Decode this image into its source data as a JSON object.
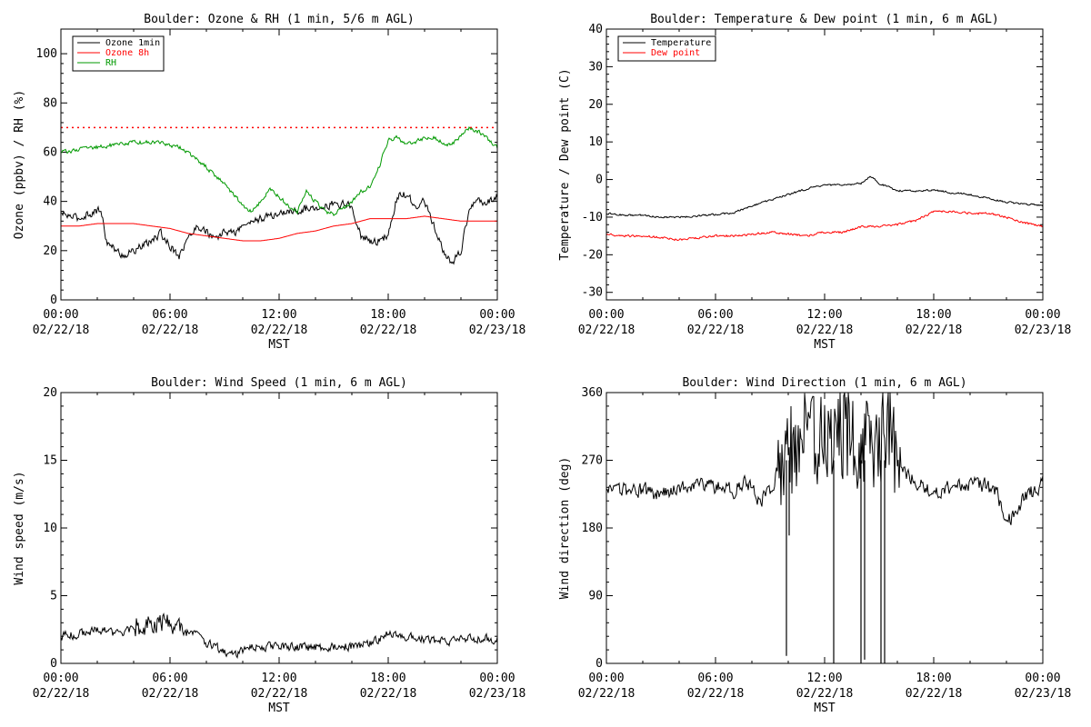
{
  "chart_data": [
    {
      "type": "line",
      "title": "Boulder: Ozone & RH (1 min, 5/6 m AGL)",
      "ylabel": "Ozone (ppbv) / RH (%)",
      "xlabel": "MST",
      "ylim": [
        0,
        110
      ],
      "yticks": [
        0,
        20,
        40,
        60,
        80,
        100
      ],
      "xticks": [
        {
          "hour": 0,
          "time": "00:00",
          "date": "02/22/18"
        },
        {
          "hour": 6,
          "time": "06:00",
          "date": "02/22/18"
        },
        {
          "hour": 12,
          "time": "12:00",
          "date": "02/22/18"
        },
        {
          "hour": 18,
          "time": "18:00",
          "date": "02/22/18"
        },
        {
          "hour": 24,
          "time": "00:00",
          "date": "02/23/18"
        }
      ],
      "legend_position": "top-left",
      "reference_line": {
        "value": 70,
        "color": "#ff0000",
        "style": "dotted"
      },
      "series": [
        {
          "name": "Ozone 1min",
          "color": "#000000",
          "noise": 2.2,
          "x": [
            0,
            1,
            1.5,
            2,
            2.2,
            2.5,
            3,
            3.5,
            4,
            4.5,
            5,
            5.5,
            6,
            6.5,
            7,
            7.5,
            8,
            8.5,
            9,
            9.5,
            10,
            10.5,
            11,
            11.5,
            12,
            12.5,
            13,
            13.5,
            14,
            14.5,
            15,
            15.5,
            16,
            16.5,
            17,
            17.5,
            18,
            18.5,
            19,
            19.5,
            20,
            20.5,
            21,
            21.5,
            22,
            22.5,
            23,
            23.5,
            24
          ],
          "y": [
            35,
            33,
            35,
            36,
            37,
            24,
            20,
            18,
            20,
            22,
            24,
            27,
            22,
            18,
            25,
            30,
            28,
            24,
            28,
            27,
            30,
            32,
            33,
            34,
            35,
            36,
            36,
            37,
            38,
            38,
            39,
            39,
            38,
            26,
            24,
            24,
            26,
            42,
            43,
            38,
            40,
            30,
            20,
            15,
            20,
            38,
            40,
            40,
            42
          ]
        },
        {
          "name": "Ozone 8h",
          "color": "#ff0000",
          "noise": 0,
          "x": [
            0,
            1,
            2,
            3,
            4,
            5,
            6,
            7,
            8,
            9,
            10,
            11,
            12,
            13,
            14,
            15,
            16,
            17,
            18,
            19,
            20,
            21,
            22,
            23,
            24
          ],
          "y": [
            30,
            30,
            31,
            31,
            31,
            30,
            29,
            27,
            26,
            25,
            24,
            24,
            25,
            27,
            28,
            30,
            31,
            33,
            33,
            33,
            34,
            33,
            32,
            32,
            32
          ]
        },
        {
          "name": "RH",
          "color": "#009900",
          "noise": 1.2,
          "x": [
            0,
            1,
            2,
            3,
            4,
            5,
            6,
            6.5,
            7,
            7.5,
            8,
            8.5,
            9,
            9.5,
            10,
            10.5,
            11,
            11.5,
            12,
            12.5,
            13,
            13.5,
            14,
            14.5,
            15,
            15.5,
            16,
            16.5,
            17,
            17.5,
            18,
            18.5,
            19,
            19.5,
            20,
            20.5,
            21,
            21.5,
            22,
            22.5,
            23,
            23.5,
            24
          ],
          "y": [
            60,
            61,
            62,
            63,
            64,
            64,
            63,
            62,
            60,
            57,
            54,
            50,
            47,
            43,
            38,
            36,
            40,
            45,
            42,
            38,
            36,
            44,
            40,
            36,
            35,
            37,
            40,
            44,
            46,
            54,
            65,
            66,
            63,
            64,
            66,
            66,
            64,
            63,
            67,
            70,
            68,
            65,
            62
          ]
        }
      ]
    },
    {
      "type": "line",
      "title": "Boulder: Temperature & Dew point (1 min, 6 m AGL)",
      "ylabel": "Temperature / Dew point (C)",
      "xlabel": "MST",
      "ylim": [
        -32,
        40
      ],
      "yticks": [
        -30,
        -20,
        -10,
        0,
        10,
        20,
        30,
        40
      ],
      "xticks": [
        {
          "hour": 0,
          "time": "00:00",
          "date": "02/22/18"
        },
        {
          "hour": 6,
          "time": "06:00",
          "date": "02/22/18"
        },
        {
          "hour": 12,
          "time": "12:00",
          "date": "02/22/18"
        },
        {
          "hour": 18,
          "time": "18:00",
          "date": "02/22/18"
        },
        {
          "hour": 24,
          "time": "00:00",
          "date": "02/23/18"
        }
      ],
      "legend_position": "top-left",
      "series": [
        {
          "name": "Temperature",
          "color": "#000000",
          "noise": 0.35,
          "x": [
            0,
            1,
            2,
            3,
            4,
            5,
            6,
            7,
            8,
            9,
            10,
            11,
            12,
            13,
            14,
            14.5,
            15,
            16,
            17,
            18,
            19,
            20,
            21,
            22,
            23,
            24
          ],
          "y": [
            -9,
            -9.5,
            -9.5,
            -10,
            -10,
            -9.7,
            -9.3,
            -8.8,
            -7,
            -5.5,
            -4,
            -2.5,
            -1.5,
            -1.5,
            -1,
            1,
            -1,
            -3,
            -3,
            -2.8,
            -3.5,
            -4,
            -5,
            -6,
            -6.5,
            -7
          ]
        },
        {
          "name": "Dew point",
          "color": "#ff0000",
          "noise": 0.4,
          "x": [
            0,
            1,
            2,
            3,
            4,
            5,
            6,
            7,
            8,
            9,
            10,
            11,
            12,
            13,
            14,
            15,
            16,
            17,
            18,
            19,
            20,
            21,
            22,
            23,
            24
          ],
          "y": [
            -14.5,
            -15,
            -15,
            -15.5,
            -16,
            -15.5,
            -15,
            -15,
            -14.5,
            -14,
            -14.5,
            -15,
            -14,
            -14,
            -12.5,
            -12.5,
            -12,
            -11,
            -8.5,
            -8.5,
            -9,
            -9,
            -10,
            -11.5,
            -12.5
          ]
        }
      ]
    },
    {
      "type": "line",
      "title": "Boulder: Wind Speed (1 min, 6 m AGL)",
      "ylabel": "Wind speed (m/s)",
      "xlabel": "MST",
      "ylim": [
        0,
        20
      ],
      "yticks": [
        0,
        5,
        10,
        15,
        20
      ],
      "xticks": [
        {
          "hour": 0,
          "time": "00:00",
          "date": "02/22/18"
        },
        {
          "hour": 6,
          "time": "06:00",
          "date": "02/22/18"
        },
        {
          "hour": 12,
          "time": "12:00",
          "date": "02/22/18"
        },
        {
          "hour": 18,
          "time": "18:00",
          "date": "02/22/18"
        },
        {
          "hour": 24,
          "time": "00:00",
          "date": "02/23/18"
        }
      ],
      "series": [
        {
          "name": "",
          "color": "#000000",
          "noise": 0.45,
          "x": [
            0,
            1,
            2,
            3,
            4,
            5,
            6,
            7,
            7.5,
            8,
            8.5,
            9,
            9.5,
            10,
            11,
            12,
            13,
            14,
            15,
            16,
            17,
            17.5,
            18,
            19,
            20,
            21,
            22,
            23,
            24
          ],
          "y": [
            2,
            2.2,
            2.5,
            2.2,
            2.5,
            2.8,
            3,
            2.5,
            2.2,
            1.5,
            1.2,
            0.8,
            0.6,
            1.0,
            1.3,
            1.2,
            1.2,
            1.2,
            1.2,
            1.3,
            1.5,
            1.8,
            2.2,
            2.0,
            1.8,
            1.6,
            1.8,
            1.8,
            1.8
          ]
        }
      ]
    },
    {
      "type": "line",
      "title": "Boulder: Wind Direction (1 min, 6 m AGL)",
      "ylabel": "Wind direction (deg)",
      "xlabel": "MST",
      "ylim": [
        0,
        360
      ],
      "yticks": [
        0,
        90,
        180,
        270,
        360
      ],
      "xticks": [
        {
          "hour": 0,
          "time": "00:00",
          "date": "02/22/18"
        },
        {
          "hour": 6,
          "time": "06:00",
          "date": "02/22/18"
        },
        {
          "hour": 12,
          "time": "12:00",
          "date": "02/22/18"
        },
        {
          "hour": 18,
          "time": "18:00",
          "date": "02/22/18"
        },
        {
          "hour": 24,
          "time": "00:00",
          "date": "02/23/18"
        }
      ],
      "series": [
        {
          "name": "",
          "color": "#000000",
          "noise": 14,
          "x": [
            0,
            1,
            2,
            3,
            4,
            5,
            6,
            7,
            7.5,
            8,
            8.5,
            9,
            9.5,
            10,
            11,
            12,
            13,
            14,
            15,
            15.5,
            16,
            17,
            18,
            19,
            20,
            21,
            21.5,
            22,
            22.5,
            23,
            23.5,
            24
          ],
          "y": [
            225,
            230,
            230,
            225,
            235,
            240,
            235,
            230,
            240,
            230,
            215,
            230,
            260,
            290,
            300,
            300,
            310,
            300,
            300,
            320,
            270,
            240,
            230,
            235,
            240,
            235,
            225,
            190,
            200,
            220,
            230,
            240
          ]
        }
      ],
      "spikes": [
        {
          "x": 9.9,
          "y": 10
        },
        {
          "x": 10.05,
          "y": 170
        },
        {
          "x": 12.5,
          "y": 0
        },
        {
          "x": 14.0,
          "y": 0
        },
        {
          "x": 14.2,
          "y": 5
        },
        {
          "x": 15.1,
          "y": 0
        },
        {
          "x": 15.3,
          "y": 0
        }
      ]
    }
  ]
}
